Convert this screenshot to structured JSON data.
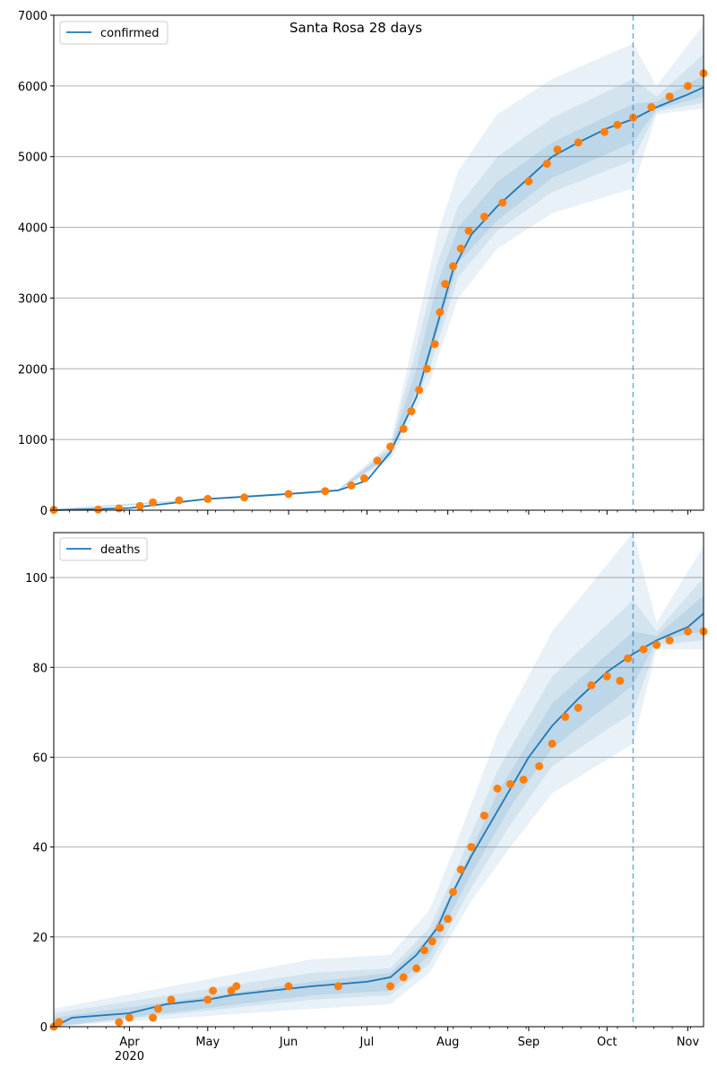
{
  "figure": {
    "title": "Santa Rosa 28 days",
    "colors": {
      "model": "#1f77b4",
      "observed": "#ff7f0e",
      "grid": "#b0b0b0",
      "forecast_marker": "#1f77b4"
    }
  },
  "chart_data": [
    {
      "type": "line",
      "legend": "confirmed",
      "legend_position": "upper-left",
      "grid_y": true,
      "x_axis": {
        "type": "date",
        "range": [
          "2020-03-03",
          "2020-11-07"
        ],
        "month_ticks": [
          {
            "date": "2020-04-01",
            "label": "Apr",
            "year": "2020"
          },
          {
            "date": "2020-05-01",
            "label": "May"
          },
          {
            "date": "2020-06-01",
            "label": "Jun"
          },
          {
            "date": "2020-07-01",
            "label": "Jul"
          },
          {
            "date": "2020-08-01",
            "label": "Aug"
          },
          {
            "date": "2020-09-01",
            "label": "Sep"
          },
          {
            "date": "2020-10-01",
            "label": "Oct"
          },
          {
            "date": "2020-11-01",
            "label": "Nov"
          }
        ],
        "tick_labels_shown": false
      },
      "y_axis": {
        "range": [
          0,
          7000
        ],
        "ticks": [
          0,
          1000,
          2000,
          3000,
          4000,
          5000,
          6000,
          7000
        ]
      },
      "forecast_start": "2020-10-11",
      "model_line": [
        [
          "2020-03-03",
          0
        ],
        [
          "2020-04-01",
          30
        ],
        [
          "2020-05-01",
          160
        ],
        [
          "2020-06-01",
          230
        ],
        [
          "2020-06-20",
          280
        ],
        [
          "2020-07-01",
          420
        ],
        [
          "2020-07-10",
          820
        ],
        [
          "2020-07-20",
          1600
        ],
        [
          "2020-07-27",
          2500
        ],
        [
          "2020-08-03",
          3400
        ],
        [
          "2020-08-10",
          3900
        ],
        [
          "2020-08-20",
          4300
        ],
        [
          "2020-09-01",
          4700
        ],
        [
          "2020-09-10",
          5000
        ],
        [
          "2020-09-20",
          5200
        ],
        [
          "2020-10-01",
          5400
        ],
        [
          "2020-10-11",
          5530
        ],
        [
          "2020-10-20",
          5700
        ],
        [
          "2020-11-01",
          5880
        ],
        [
          "2020-11-07",
          5980
        ]
      ],
      "observed": [
        [
          "2020-03-03",
          5
        ],
        [
          "2020-03-20",
          10
        ],
        [
          "2020-03-28",
          25
        ],
        [
          "2020-04-05",
          60
        ],
        [
          "2020-04-10",
          110
        ],
        [
          "2020-04-20",
          140
        ],
        [
          "2020-05-01",
          160
        ],
        [
          "2020-05-15",
          180
        ],
        [
          "2020-06-01",
          230
        ],
        [
          "2020-06-15",
          270
        ],
        [
          "2020-06-25",
          350
        ],
        [
          "2020-06-30",
          450
        ],
        [
          "2020-07-05",
          700
        ],
        [
          "2020-07-10",
          900
        ],
        [
          "2020-07-15",
          1150
        ],
        [
          "2020-07-18",
          1400
        ],
        [
          "2020-07-21",
          1700
        ],
        [
          "2020-07-24",
          2000
        ],
        [
          "2020-07-27",
          2350
        ],
        [
          "2020-07-29",
          2800
        ],
        [
          "2020-07-31",
          3200
        ],
        [
          "2020-08-03",
          3450
        ],
        [
          "2020-08-06",
          3700
        ],
        [
          "2020-08-09",
          3950
        ],
        [
          "2020-08-15",
          4150
        ],
        [
          "2020-08-22",
          4350
        ],
        [
          "2020-09-01",
          4650
        ],
        [
          "2020-09-08",
          4900
        ],
        [
          "2020-09-12",
          5100
        ],
        [
          "2020-09-20",
          5200
        ],
        [
          "2020-09-30",
          5350
        ],
        [
          "2020-10-05",
          5450
        ],
        [
          "2020-10-11",
          5550
        ],
        [
          "2020-10-18",
          5700
        ],
        [
          "2020-10-25",
          5850
        ],
        [
          "2020-11-01",
          6000
        ],
        [
          "2020-11-07",
          6180
        ]
      ],
      "bands": [
        {
          "level": "outer",
          "lower": [
            [
              "2020-03-03",
              0
            ],
            [
              "2020-06-20",
              260
            ],
            [
              "2020-07-10",
              700
            ],
            [
              "2020-07-25",
              1800
            ],
            [
              "2020-08-05",
              3000
            ],
            [
              "2020-08-20",
              3700
            ],
            [
              "2020-09-10",
              4200
            ],
            [
              "2020-10-11",
              4550
            ],
            [
              "2020-10-20",
              5600
            ],
            [
              "2020-11-07",
              5680
            ]
          ],
          "upper": [
            [
              "2020-03-03",
              20
            ],
            [
              "2020-06-20",
              300
            ],
            [
              "2020-07-10",
              950
            ],
            [
              "2020-07-20",
              2600
            ],
            [
              "2020-07-28",
              3900
            ],
            [
              "2020-08-05",
              4800
            ],
            [
              "2020-08-20",
              5600
            ],
            [
              "2020-09-10",
              6100
            ],
            [
              "2020-10-11",
              6600
            ],
            [
              "2020-10-20",
              6000
            ],
            [
              "2020-11-07",
              6870
            ]
          ]
        },
        {
          "level": "middle",
          "lower": [
            [
              "2020-03-03",
              0
            ],
            [
              "2020-06-20",
              270
            ],
            [
              "2020-07-10",
              750
            ],
            [
              "2020-07-25",
              2000
            ],
            [
              "2020-08-05",
              3300
            ],
            [
              "2020-08-20",
              3950
            ],
            [
              "2020-09-10",
              4500
            ],
            [
              "2020-10-11",
              4950
            ],
            [
              "2020-10-20",
              5640
            ],
            [
              "2020-11-07",
              5760
            ]
          ],
          "upper": [
            [
              "2020-03-03",
              15
            ],
            [
              "2020-06-20",
              290
            ],
            [
              "2020-07-10",
              900
            ],
            [
              "2020-07-20",
              2300
            ],
            [
              "2020-07-28",
              3500
            ],
            [
              "2020-08-05",
              4300
            ],
            [
              "2020-08-20",
              5000
            ],
            [
              "2020-09-10",
              5550
            ],
            [
              "2020-10-11",
              6100
            ],
            [
              "2020-10-20",
              5850
            ],
            [
              "2020-11-07",
              6450
            ]
          ]
        },
        {
          "level": "inner",
          "lower": [
            [
              "2020-03-03",
              0
            ],
            [
              "2020-06-20",
              275
            ],
            [
              "2020-07-10",
              780
            ],
            [
              "2020-07-25",
              2150
            ],
            [
              "2020-08-05",
              3500
            ],
            [
              "2020-08-20",
              4100
            ],
            [
              "2020-09-10",
              4700
            ],
            [
              "2020-10-11",
              5200
            ],
            [
              "2020-10-20",
              5670
            ],
            [
              "2020-11-07",
              5850
            ]
          ],
          "upper": [
            [
              "2020-03-03",
              10
            ],
            [
              "2020-06-20",
              285
            ],
            [
              "2020-07-10",
              860
            ],
            [
              "2020-07-20",
              2000
            ],
            [
              "2020-07-28",
              3200
            ],
            [
              "2020-08-05",
              4000
            ],
            [
              "2020-08-20",
              4650
            ],
            [
              "2020-09-10",
              5200
            ],
            [
              "2020-10-11",
              5750
            ],
            [
              "2020-10-20",
              5780
            ],
            [
              "2020-11-07",
              6150
            ]
          ]
        }
      ]
    },
    {
      "type": "line",
      "legend": "deaths",
      "legend_position": "upper-left",
      "grid_y": true,
      "x_axis": {
        "type": "date",
        "range": [
          "2020-03-03",
          "2020-11-07"
        ],
        "month_ticks": [
          {
            "date": "2020-04-01",
            "label": "Apr",
            "year": "2020"
          },
          {
            "date": "2020-05-01",
            "label": "May"
          },
          {
            "date": "2020-06-01",
            "label": "Jun"
          },
          {
            "date": "2020-07-01",
            "label": "Jul"
          },
          {
            "date": "2020-08-01",
            "label": "Aug"
          },
          {
            "date": "2020-09-01",
            "label": "Sep"
          },
          {
            "date": "2020-10-01",
            "label": "Oct"
          },
          {
            "date": "2020-11-01",
            "label": "Nov"
          }
        ],
        "tick_labels_shown": true
      },
      "y_axis": {
        "range": [
          0,
          110
        ],
        "ticks": [
          0,
          20,
          40,
          60,
          80,
          100
        ]
      },
      "forecast_start": "2020-10-11",
      "model_line": [
        [
          "2020-03-03",
          0
        ],
        [
          "2020-03-10",
          2
        ],
        [
          "2020-04-01",
          3
        ],
        [
          "2020-04-15",
          5
        ],
        [
          "2020-05-01",
          6
        ],
        [
          "2020-05-10",
          7
        ],
        [
          "2020-05-25",
          8
        ],
        [
          "2020-06-10",
          9
        ],
        [
          "2020-07-01",
          10
        ],
        [
          "2020-07-10",
          11
        ],
        [
          "2020-07-20",
          16
        ],
        [
          "2020-07-28",
          22
        ],
        [
          "2020-08-03",
          30
        ],
        [
          "2020-08-10",
          38
        ],
        [
          "2020-08-20",
          48
        ],
        [
          "2020-09-01",
          60
        ],
        [
          "2020-09-10",
          67
        ],
        [
          "2020-09-20",
          73
        ],
        [
          "2020-10-01",
          79
        ],
        [
          "2020-10-11",
          83
        ],
        [
          "2020-10-20",
          86
        ],
        [
          "2020-11-01",
          89
        ],
        [
          "2020-11-07",
          92
        ]
      ],
      "observed": [
        [
          "2020-03-03",
          0
        ],
        [
          "2020-03-05",
          1
        ],
        [
          "2020-03-28",
          1
        ],
        [
          "2020-04-01",
          2
        ],
        [
          "2020-04-10",
          2
        ],
        [
          "2020-04-12",
          4
        ],
        [
          "2020-04-17",
          6
        ],
        [
          "2020-05-01",
          6
        ],
        [
          "2020-05-03",
          8
        ],
        [
          "2020-05-10",
          8
        ],
        [
          "2020-05-12",
          9
        ],
        [
          "2020-06-01",
          9
        ],
        [
          "2020-06-20",
          9
        ],
        [
          "2020-07-10",
          9
        ],
        [
          "2020-07-15",
          11
        ],
        [
          "2020-07-20",
          13
        ],
        [
          "2020-07-23",
          17
        ],
        [
          "2020-07-26",
          19
        ],
        [
          "2020-07-29",
          22
        ],
        [
          "2020-08-01",
          24
        ],
        [
          "2020-08-03",
          30
        ],
        [
          "2020-08-06",
          35
        ],
        [
          "2020-08-10",
          40
        ],
        [
          "2020-08-15",
          47
        ],
        [
          "2020-08-20",
          53
        ],
        [
          "2020-08-25",
          54
        ],
        [
          "2020-08-30",
          55
        ],
        [
          "2020-09-05",
          58
        ],
        [
          "2020-09-10",
          63
        ],
        [
          "2020-09-15",
          69
        ],
        [
          "2020-09-20",
          71
        ],
        [
          "2020-09-25",
          76
        ],
        [
          "2020-10-01",
          78
        ],
        [
          "2020-10-06",
          77
        ],
        [
          "2020-10-09",
          82
        ],
        [
          "2020-10-15",
          84
        ],
        [
          "2020-10-20",
          85
        ],
        [
          "2020-10-25",
          86
        ],
        [
          "2020-11-01",
          88
        ],
        [
          "2020-11-07",
          88
        ]
      ],
      "bands": [
        {
          "level": "outer",
          "lower": [
            [
              "2020-03-03",
              0
            ],
            [
              "2020-06-10",
              4
            ],
            [
              "2020-07-10",
              5
            ],
            [
              "2020-07-25",
              12
            ],
            [
              "2020-08-10",
              28
            ],
            [
              "2020-08-25",
              40
            ],
            [
              "2020-09-10",
              52
            ],
            [
              "2020-10-11",
              63
            ],
            [
              "2020-10-20",
              84
            ],
            [
              "2020-11-07",
              84
            ]
          ],
          "upper": [
            [
              "2020-03-03",
              4
            ],
            [
              "2020-06-10",
              15
            ],
            [
              "2020-07-10",
              16
            ],
            [
              "2020-07-25",
              26
            ],
            [
              "2020-08-05",
              42
            ],
            [
              "2020-08-20",
              65
            ],
            [
              "2020-09-10",
              88
            ],
            [
              "2020-10-11",
              110
            ],
            [
              "2020-10-20",
              90
            ],
            [
              "2020-11-07",
              107
            ]
          ]
        },
        {
          "level": "middle",
          "lower": [
            [
              "2020-03-03",
              0
            ],
            [
              "2020-06-10",
              6
            ],
            [
              "2020-07-10",
              7
            ],
            [
              "2020-07-25",
              14
            ],
            [
              "2020-08-10",
              31
            ],
            [
              "2020-08-25",
              45
            ],
            [
              "2020-09-10",
              58
            ],
            [
              "2020-10-11",
              70
            ],
            [
              "2020-10-20",
              85
            ],
            [
              "2020-11-07",
              86
            ]
          ],
          "upper": [
            [
              "2020-03-03",
              3
            ],
            [
              "2020-06-10",
              12
            ],
            [
              "2020-07-10",
              13
            ],
            [
              "2020-07-25",
              22
            ],
            [
              "2020-08-05",
              36
            ],
            [
              "2020-08-20",
              57
            ],
            [
              "2020-09-10",
              78
            ],
            [
              "2020-10-11",
              95
            ],
            [
              "2020-10-20",
              88
            ],
            [
              "2020-11-07",
              100
            ]
          ]
        },
        {
          "level": "inner",
          "lower": [
            [
              "2020-03-03",
              0
            ],
            [
              "2020-06-10",
              7
            ],
            [
              "2020-07-10",
              8
            ],
            [
              "2020-07-25",
              16
            ],
            [
              "2020-08-10",
              34
            ],
            [
              "2020-08-25",
              49
            ],
            [
              "2020-09-10",
              62
            ],
            [
              "2020-10-11",
              76
            ],
            [
              "2020-10-20",
              86
            ],
            [
              "2020-11-07",
              88
            ]
          ],
          "upper": [
            [
              "2020-03-03",
              2
            ],
            [
              "2020-06-10",
              10
            ],
            [
              "2020-07-10",
              12
            ],
            [
              "2020-07-25",
              20
            ],
            [
              "2020-08-05",
              33
            ],
            [
              "2020-08-20",
              52
            ],
            [
              "2020-09-10",
              72
            ],
            [
              "2020-10-11",
              88
            ],
            [
              "2020-10-20",
              87
            ],
            [
              "2020-11-07",
              96
            ]
          ]
        }
      ]
    }
  ]
}
